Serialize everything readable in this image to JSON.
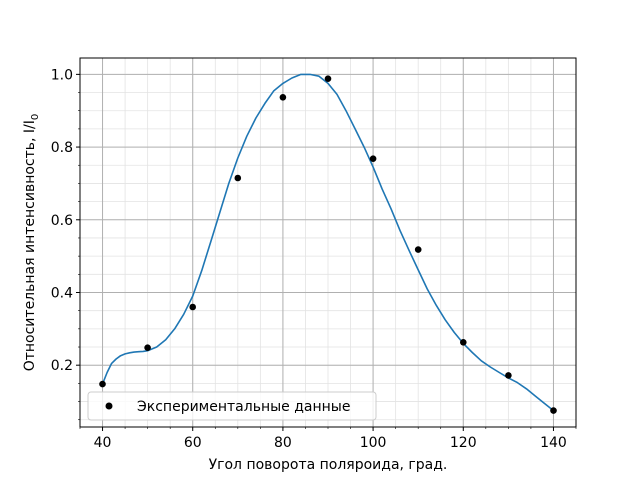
{
  "chart_data": {
    "type": "scatter",
    "xlabel": "Угол поворота поляроида, град.",
    "ylabel": "Относительная интенсивность, I/I",
    "ylabel_subscript": "0",
    "xlim": [
      35,
      145
    ],
    "ylim": [
      0.03,
      1.045
    ],
    "xticks": [
      40,
      60,
      80,
      100,
      120,
      140
    ],
    "yticks": [
      0.2,
      0.4,
      0.6,
      0.8,
      1.0
    ],
    "xtick_labels": [
      "40",
      "60",
      "80",
      "100",
      "120",
      "140"
    ],
    "ytick_labels": [
      "0.2",
      "0.4",
      "0.6",
      "0.8",
      "1.0"
    ],
    "grid": true,
    "minor_grid": true,
    "legend_position": "lower-left",
    "series": [
      {
        "name": "Экспериментальные данные",
        "kind": "scatter",
        "color": "#000000",
        "x": [
          40,
          50,
          60,
          70,
          80,
          90,
          100,
          110,
          120,
          130,
          140
        ],
        "y": [
          0.148,
          0.248,
          0.36,
          0.715,
          0.937,
          0.988,
          0.768,
          0.518,
          0.263,
          0.172,
          0.075
        ]
      },
      {
        "kind": "line",
        "color": "#1f77b4",
        "x": [
          40,
          41,
          42,
          43,
          44,
          45,
          46,
          47,
          48,
          49,
          50,
          52,
          54,
          56,
          58,
          60,
          62,
          64,
          66,
          68,
          70,
          72,
          74,
          76,
          78,
          80,
          82,
          84,
          86,
          88,
          90,
          92,
          94,
          96,
          98,
          100,
          102,
          104,
          106,
          108,
          110,
          112,
          114,
          116,
          118,
          120,
          122,
          124,
          126,
          128,
          130,
          132,
          134,
          136,
          138,
          140
        ],
        "y": [
          0.148,
          0.18,
          0.205,
          0.217,
          0.226,
          0.231,
          0.234,
          0.236,
          0.237,
          0.238,
          0.24,
          0.25,
          0.27,
          0.3,
          0.34,
          0.39,
          0.46,
          0.54,
          0.62,
          0.7,
          0.77,
          0.83,
          0.88,
          0.92,
          0.955,
          0.975,
          0.99,
          1.0,
          1.0,
          0.995,
          0.975,
          0.945,
          0.9,
          0.85,
          0.8,
          0.745,
          0.685,
          0.63,
          0.57,
          0.515,
          0.462,
          0.41,
          0.365,
          0.325,
          0.29,
          0.26,
          0.235,
          0.212,
          0.195,
          0.18,
          0.165,
          0.152,
          0.135,
          0.115,
          0.095,
          0.075
        ]
      }
    ]
  }
}
